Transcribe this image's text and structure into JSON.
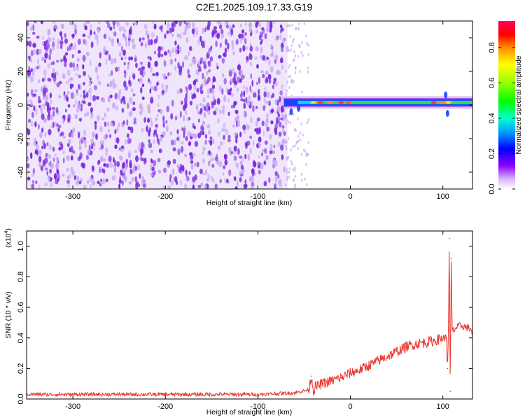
{
  "figure": {
    "title": "C2E1.2025.109.17.33.G19"
  },
  "chart_data": [
    {
      "type": "heatmap",
      "title": "C2E1.2025.109.17.33.G19",
      "xlabel": "Height of straight line (km)",
      "ylabel": "Frequency (Hz)",
      "xlim": [
        -350,
        132
      ],
      "ylim": [
        -50,
        50
      ],
      "x_ticks": [
        -300,
        -200,
        -100,
        0,
        100
      ],
      "y_ticks": [
        -40,
        -20,
        0,
        20,
        40
      ],
      "colorbar": {
        "label": "Normalized spectral amplitude",
        "range": [
          0,
          0.95
        ],
        "ticks": [
          0.0,
          0.2,
          0.4,
          0.6,
          0.8
        ],
        "colormap": "rainbow"
      },
      "colors": {
        "noise": "#7a2be0",
        "noise_light": "#c9a8f2"
      },
      "regions": {
        "noise_floor": {
          "x_from": -350,
          "x_to": -68,
          "amplitude": 0.12
        },
        "signal": {
          "x_from": -72,
          "x_to": 132,
          "frequency_hz": 1.5,
          "peak_amplitude": 0.9
        }
      }
    },
    {
      "type": "line",
      "xlabel": "Height of straight line (km)",
      "ylabel": "SNR (10 * v/v)",
      "y_multiplier": "(x10",
      "y_multiplier_exp": "4",
      "y_multiplier_close": ")",
      "xlim": [
        -350,
        132
      ],
      "ylim": [
        0,
        1.1
      ],
      "x_ticks": [
        -300,
        -200,
        -100,
        0,
        100
      ],
      "y_ticks": [
        0.0,
        0.2,
        0.4,
        0.6,
        0.8,
        1.0
      ],
      "series": [
        {
          "color": "#e8322b",
          "x": [
            -350,
            -300,
            -200,
            -100,
            -60,
            -45,
            -42,
            -40,
            -38,
            -30,
            -20,
            -10,
            0,
            10,
            20,
            30,
            40,
            50,
            60,
            70,
            80,
            90,
            100,
            104,
            105,
            106,
            107,
            108,
            109,
            110,
            112,
            115,
            120,
            125,
            130,
            132
          ],
          "y": [
            0.03,
            0.03,
            0.03,
            0.03,
            0.04,
            0.06,
            0.15,
            0.05,
            0.08,
            0.1,
            0.12,
            0.14,
            0.17,
            0.19,
            0.22,
            0.25,
            0.28,
            0.31,
            0.34,
            0.36,
            0.37,
            0.38,
            0.4,
            0.4,
            0.2,
            0.45,
            1.05,
            0.05,
            0.92,
            0.45,
            0.45,
            0.47,
            0.48,
            0.47,
            0.46,
            0.42
          ]
        }
      ]
    }
  ]
}
